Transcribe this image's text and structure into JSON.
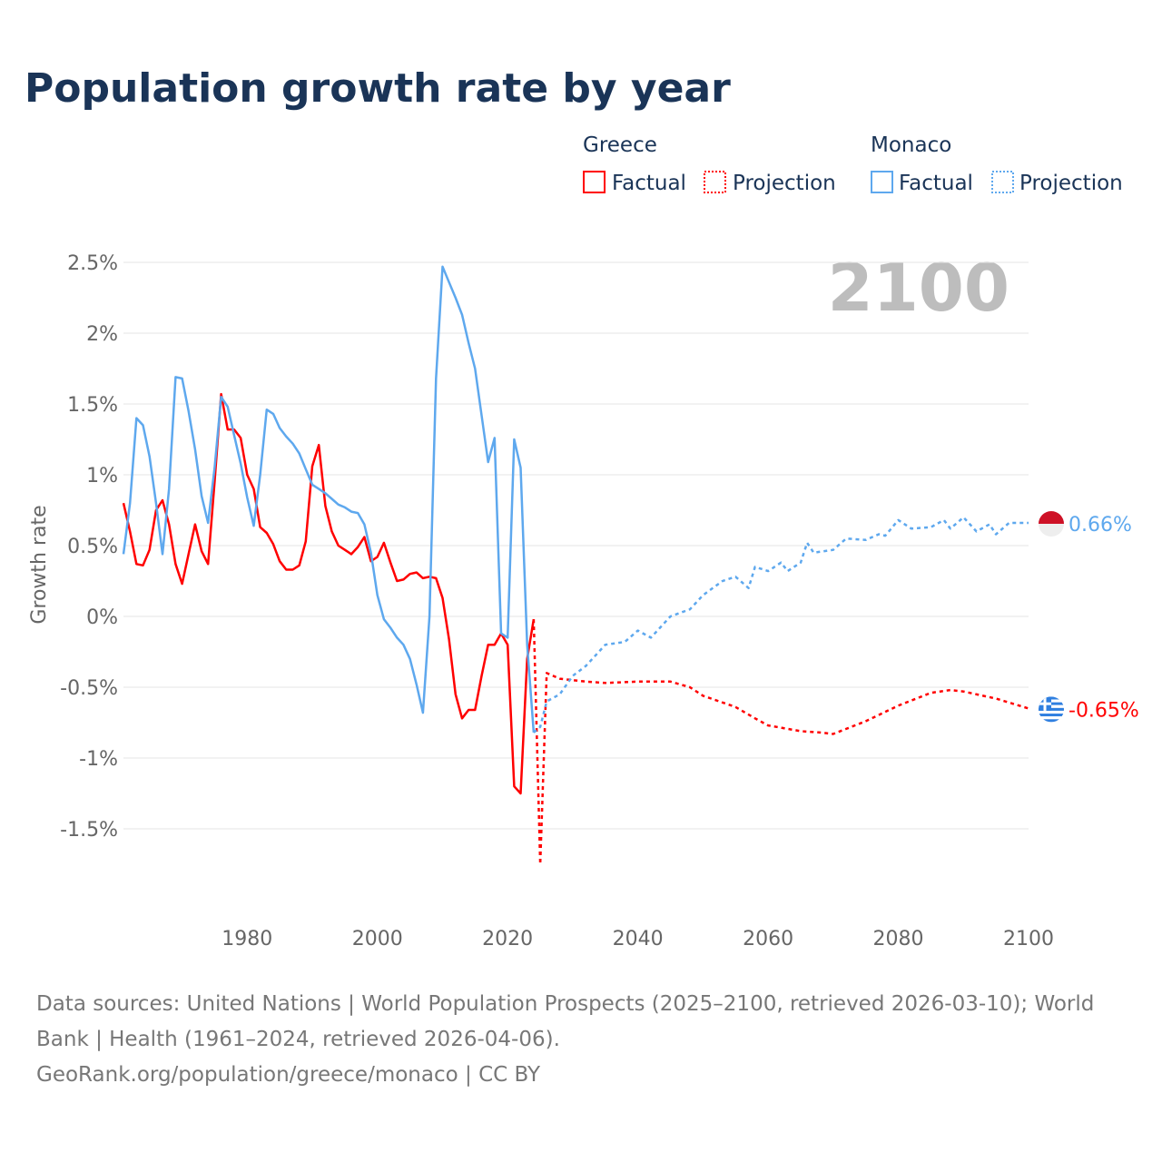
{
  "chart_data": {
    "type": "line",
    "title": "Population growth rate by year",
    "ylabel": "Growth rate",
    "xlabel": "",
    "xlim": [
      1961,
      2100
    ],
    "ylim": [
      -2,
      2.6
    ],
    "x_ticks": [
      1980,
      2000,
      2020,
      2040,
      2060,
      2080,
      2100
    ],
    "x_tick_labels": [
      "1980",
      "2000",
      "2020",
      "2040",
      "2060",
      "2080",
      "2100"
    ],
    "y_ticks": [
      2.5,
      2,
      1.5,
      1,
      0.5,
      0,
      -0.5,
      -1,
      -1.5
    ],
    "y_tick_labels": [
      "2.5%",
      "2%",
      "1.5%",
      "1%",
      "0.5%",
      "0%",
      "-0.5%",
      "-1%",
      "-1.5%"
    ],
    "year_label": "2100",
    "legend": {
      "groups": [
        {
          "name": "Greece",
          "items": [
            "Factual",
            "Projection"
          ]
        },
        {
          "name": "Monaco",
          "items": [
            "Factual",
            "Projection"
          ]
        }
      ],
      "placement": "top-right"
    },
    "series": [
      {
        "name": "Greece",
        "kind": "Factual",
        "color": "#ff0000",
        "x": [
          1961,
          1962,
          1963,
          1964,
          1965,
          1966,
          1967,
          1968,
          1969,
          1970,
          1971,
          1972,
          1973,
          1974,
          1975,
          1976,
          1977,
          1978,
          1979,
          1980,
          1981,
          1982,
          1983,
          1984,
          1985,
          1986,
          1987,
          1988,
          1989,
          1990,
          1991,
          1992,
          1993,
          1994,
          1995,
          1996,
          1997,
          1998,
          1999,
          2000,
          2001,
          2002,
          2003,
          2004,
          2005,
          2006,
          2007,
          2008,
          2009,
          2010,
          2011,
          2012,
          2013,
          2014,
          2015,
          2016,
          2017,
          2018,
          2019,
          2020,
          2021,
          2022,
          2023,
          2024
        ],
        "y": [
          0.8,
          0.6,
          0.37,
          0.36,
          0.47,
          0.75,
          0.82,
          0.65,
          0.37,
          0.23,
          0.44,
          0.65,
          0.46,
          0.37,
          0.95,
          1.57,
          1.32,
          1.32,
          1.26,
          1.0,
          0.9,
          0.63,
          0.59,
          0.51,
          0.39,
          0.33,
          0.33,
          0.36,
          0.53,
          1.06,
          1.21,
          0.78,
          0.6,
          0.5,
          0.47,
          0.44,
          0.49,
          0.56,
          0.39,
          0.42,
          0.52,
          0.38,
          0.25,
          0.26,
          0.3,
          0.31,
          0.27,
          0.28,
          0.27,
          0.13,
          -0.16,
          -0.55,
          -0.72,
          -0.66,
          -0.66,
          -0.42,
          -0.2,
          -0.2,
          -0.12,
          -0.2,
          -1.2,
          -1.25,
          -0.3,
          -0.02
        ]
      },
      {
        "name": "Greece",
        "kind": "Projection",
        "color": "#ff0000",
        "x": [
          2024,
          2025,
          2026,
          2027,
          2028,
          2030,
          2032,
          2035,
          2040,
          2045,
          2048,
          2050,
          2055,
          2058,
          2060,
          2065,
          2068,
          2070,
          2075,
          2080,
          2085,
          2088,
          2090,
          2095,
          2100
        ],
        "y": [
          -0.02,
          -1.75,
          -0.4,
          -0.42,
          -0.44,
          -0.45,
          -0.46,
          -0.47,
          -0.46,
          -0.46,
          -0.5,
          -0.56,
          -0.64,
          -0.72,
          -0.77,
          -0.81,
          -0.82,
          -0.83,
          -0.74,
          -0.63,
          -0.54,
          -0.52,
          -0.53,
          -0.58,
          -0.65
        ]
      },
      {
        "name": "Monaco",
        "kind": "Factual",
        "color": "#5ea8ee",
        "x": [
          1961,
          1962,
          1963,
          1964,
          1965,
          1966,
          1967,
          1968,
          1969,
          1970,
          1971,
          1972,
          1973,
          1974,
          1975,
          1976,
          1977,
          1978,
          1979,
          1980,
          1981,
          1982,
          1983,
          1984,
          1985,
          1986,
          1987,
          1988,
          1989,
          1990,
          1991,
          1992,
          1993,
          1994,
          1995,
          1996,
          1997,
          1998,
          1999,
          2000,
          2001,
          2002,
          2003,
          2004,
          2005,
          2006,
          2007,
          2008,
          2009,
          2010,
          2011,
          2012,
          2013,
          2014,
          2015,
          2016,
          2017,
          2018,
          2019,
          2020,
          2021,
          2022,
          2023,
          2024
        ],
        "y": [
          0.44,
          0.8,
          1.4,
          1.35,
          1.13,
          0.8,
          0.44,
          0.9,
          1.69,
          1.68,
          1.45,
          1.18,
          0.85,
          0.66,
          1.05,
          1.55,
          1.48,
          1.28,
          1.08,
          0.84,
          0.64,
          1.0,
          1.46,
          1.43,
          1.33,
          1.27,
          1.22,
          1.15,
          1.04,
          0.93,
          0.9,
          0.87,
          0.83,
          0.79,
          0.77,
          0.74,
          0.73,
          0.65,
          0.45,
          0.15,
          -0.02,
          -0.08,
          -0.15,
          -0.2,
          -0.3,
          -0.48,
          -0.68,
          0.0,
          1.68,
          2.47,
          2.36,
          2.25,
          2.13,
          1.93,
          1.75,
          1.42,
          1.09,
          1.26,
          -0.12,
          -0.15,
          1.25,
          1.05,
          -0.2,
          -0.82
        ]
      },
      {
        "name": "Monaco",
        "kind": "Projection",
        "color": "#5ea8ee",
        "x": [
          2024,
          2025,
          2026,
          2028,
          2030,
          2032,
          2035,
          2038,
          2040,
          2042,
          2045,
          2048,
          2050,
          2053,
          2055,
          2057,
          2058,
          2060,
          2062,
          2063,
          2065,
          2066,
          2067,
          2070,
          2072,
          2075,
          2077,
          2078,
          2080,
          2082,
          2085,
          2087,
          2088,
          2090,
          2092,
          2094,
          2095,
          2097,
          2100
        ],
        "y": [
          -0.82,
          -0.78,
          -0.6,
          -0.55,
          -0.42,
          -0.35,
          -0.2,
          -0.18,
          -0.1,
          -0.15,
          0.0,
          0.05,
          0.15,
          0.25,
          0.28,
          0.2,
          0.35,
          0.32,
          0.38,
          0.32,
          0.38,
          0.52,
          0.45,
          0.47,
          0.55,
          0.54,
          0.58,
          0.57,
          0.68,
          0.62,
          0.63,
          0.68,
          0.62,
          0.7,
          0.6,
          0.65,
          0.58,
          0.66,
          0.66
        ]
      }
    ],
    "end_labels": [
      {
        "country": "Monaco",
        "value": 0.66,
        "text": "0.66%"
      },
      {
        "country": "Greece",
        "value": -0.65,
        "text": "-0.65%"
      }
    ]
  },
  "footer": {
    "line1": "Data sources: United Nations | World Population Prospects (2025–2100, retrieved 2026-03-10); World",
    "line2": "Bank | Health (1961–2024, retrieved 2026-04-06).",
    "line3": "GeoRank.org/population/greece/monaco | CC BY"
  }
}
